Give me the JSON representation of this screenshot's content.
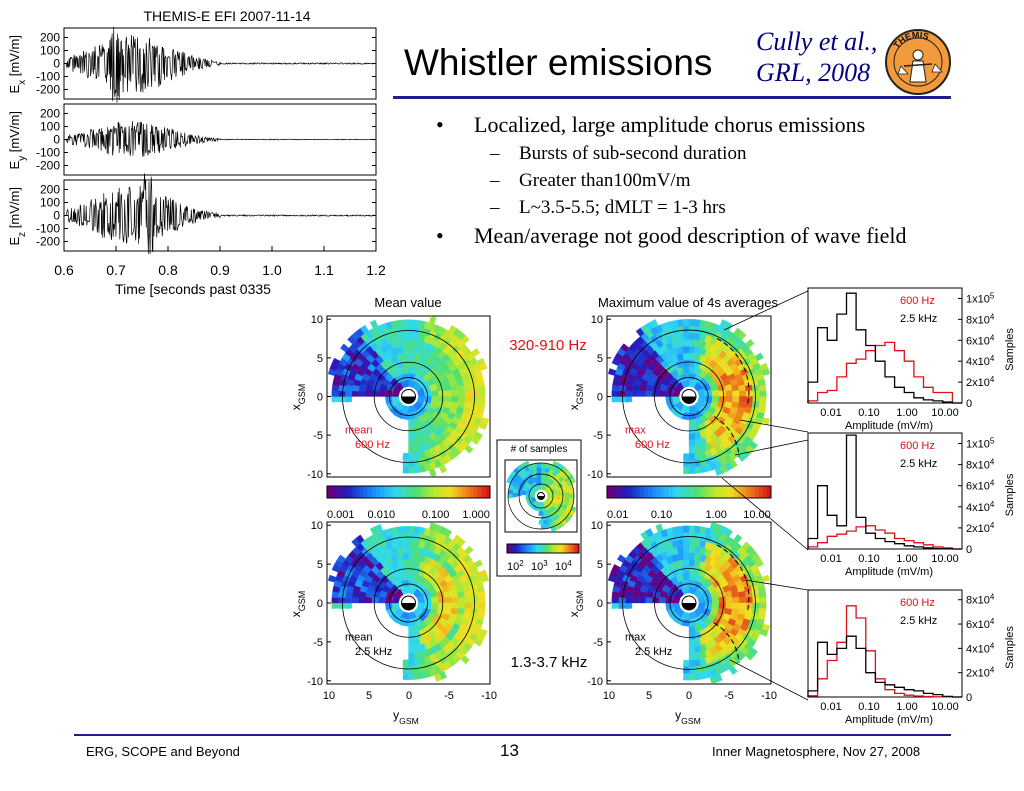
{
  "slide": {
    "title": "Whistler emissions",
    "citation_line1": "Cully et al.,",
    "citation_line2": "GRL, 2008",
    "logo_text": "THEMIS"
  },
  "bullets": [
    {
      "level": 1,
      "text": "Localized, large amplitude chorus emissions"
    },
    {
      "level": 2,
      "text": "Bursts of sub-second duration"
    },
    {
      "level": 2,
      "text": "Greater than100mV/m"
    },
    {
      "level": 2,
      "text": "L~3.5-5.5; dMLT = 1-3 hrs"
    },
    {
      "level": 1,
      "text": "Mean/average not good description of wave field"
    }
  ],
  "footer": {
    "left": "ERG, SCOPE and Beyond",
    "page": "13",
    "right": "Inner Magnetosphere, Nov 27, 2008"
  },
  "waveform": {
    "title": "THEMIS-E EFI 2007-11-14",
    "xlabel": "Time [seconds past 0335",
    "xticks": [
      "0.6",
      "0.7",
      "0.8",
      "0.9",
      "1.0",
      "1.1",
      "1.2"
    ],
    "xrange": [
      0.6,
      1.2
    ],
    "panels": [
      {
        "label": "E",
        "sub": "x",
        "unit": " [mV/m]",
        "yticks": [
          "200",
          "100",
          "0",
          "-100",
          "-200"
        ],
        "ylim": [
          -250,
          250
        ]
      },
      {
        "label": "E",
        "sub": "y",
        "unit": " [mV/m]",
        "yticks": [
          "200",
          "100",
          "0",
          "-100",
          "-200"
        ],
        "ylim": [
          -250,
          250
        ]
      },
      {
        "label": "E",
        "sub": "z",
        "unit": " [mV/m]",
        "yticks": [
          "200",
          "100",
          "0",
          "-100",
          "-200"
        ],
        "ylim": [
          -250,
          250
        ]
      }
    ]
  },
  "maps": {
    "col_titles": [
      "Mean value",
      "Maximum value of 4s averages"
    ],
    "band_labels": [
      "320-910 Hz",
      "1.3-3.7 kHz"
    ],
    "x_axis": "y",
    "x_axis_sub": "GSM",
    "y_axis": "x",
    "y_axis_sub": "GSM",
    "ticks_y": [
      "10",
      "5",
      "0",
      "-5",
      "-10"
    ],
    "ticks_x": [
      "10",
      "5",
      "0",
      "-5",
      "-10"
    ],
    "panels": [
      {
        "id": "mean-600",
        "l1": "mean",
        "l2": "600 Hz",
        "red": true
      },
      {
        "id": "max-600",
        "l1": "max",
        "l2": "600 Hz",
        "red": true
      },
      {
        "id": "mean-2.5",
        "l1": "mean",
        "l2": "2.5 kHz",
        "red": false
      },
      {
        "id": "max-2.5",
        "l1": "max",
        "l2": "2.5 kHz",
        "red": false
      }
    ],
    "colorbar_mean": [
      "0.001",
      "0.010",
      "0.100",
      "1.000"
    ],
    "colorbar_max": [
      "0.01",
      "0.10",
      "1.00",
      "10.00"
    ],
    "samples_title": "# of samples",
    "samples_ticks": [
      "10",
      "10",
      "10"
    ],
    "samples_exps": [
      "2",
      "3",
      "4"
    ]
  },
  "histograms": {
    "ylabel": "Samples",
    "xlabel": "Amplitude (mV/m)",
    "xticks": [
      "0.01",
      "0.10",
      "1.00",
      "10.00"
    ],
    "legend_red": "600 Hz",
    "legend_black": "2.5 kHz",
    "colors": {
      "red": "#e0101a",
      "black": "#000000"
    },
    "panels": [
      {
        "yticks": [
          {
            "m": "1x10",
            "e": "5"
          },
          {
            "m": "8x10",
            "e": "4"
          },
          {
            "m": "6x10",
            "e": "4"
          },
          {
            "m": "4x10",
            "e": "4"
          },
          {
            "m": "2x10",
            "e": "4"
          },
          {
            "m": "0",
            "e": ""
          }
        ],
        "ymax": 110000,
        "series": [
          {
            "name": "600 Hz",
            "values": [
              2000,
              10000,
              12000,
              25000,
              38000,
              42000,
              50000,
              55000,
              58000,
              50000,
              40000,
              25000,
              15000,
              10000,
              10000,
              0
            ]
          },
          {
            "name": "2.5 kHz",
            "values": [
              20000,
              72000,
              60000,
              85000,
              105000,
              70000,
              55000,
              40000,
              25000,
              15000,
              10000,
              5000,
              3000,
              2000,
              1000,
              0
            ]
          }
        ]
      },
      {
        "yticks": [
          {
            "m": "1x10",
            "e": "5"
          },
          {
            "m": "8x10",
            "e": "4"
          },
          {
            "m": "6x10",
            "e": "4"
          },
          {
            "m": "4x10",
            "e": "4"
          },
          {
            "m": "2x10",
            "e": "4"
          },
          {
            "m": "0",
            "e": ""
          }
        ],
        "ymax": 110000,
        "series": [
          {
            "name": "600 Hz",
            "values": [
              2000,
              6000,
              12000,
              14000,
              17000,
              21000,
              22000,
              18000,
              15000,
              10000,
              8000,
              6000,
              4000,
              2000,
              1000,
              0
            ]
          },
          {
            "name": "2.5 kHz",
            "values": [
              10000,
              60000,
              32000,
              22000,
              108000,
              30000,
              15000,
              10000,
              7000,
              5000,
              3000,
              2000,
              1000,
              500,
              200,
              0
            ]
          }
        ]
      },
      {
        "yticks": [
          {
            "m": "8x10",
            "e": "4"
          },
          {
            "m": "6x10",
            "e": "4"
          },
          {
            "m": "4x10",
            "e": "4"
          },
          {
            "m": "2x10",
            "e": "4"
          },
          {
            "m": "0",
            "e": ""
          }
        ],
        "ymax": 88000,
        "series": [
          {
            "name": "600 Hz",
            "values": [
              1000,
              15000,
              30000,
              45000,
              75000,
              65000,
              38000,
              15000,
              6000,
              3000,
              1500,
              800,
              400,
              200,
              100,
              0
            ]
          },
          {
            "name": "2.5 kHz",
            "values": [
              5000,
              45000,
              35000,
              40000,
              50000,
              40000,
              20000,
              12000,
              10000,
              8000,
              6000,
              5000,
              3000,
              2000,
              500,
              0
            ]
          }
        ]
      }
    ]
  }
}
